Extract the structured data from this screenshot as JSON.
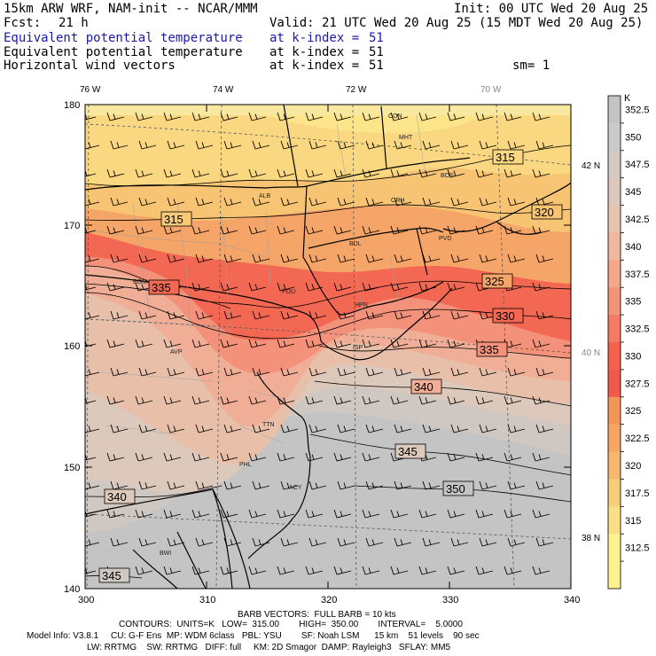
{
  "header": {
    "model_line": "15km ARW WRF, NAM-init -- NCAR/MMM",
    "init": "Init: 00 UTC Wed 20 Aug 25",
    "fcst_label": "Fcst:",
    "fcst_value": "21 h",
    "valid": "Valid: 21 UTC Wed 20 Aug 25 (15 MDT Wed 20 Aug 25)",
    "fields": [
      {
        "name": "Equivalent potential temperature",
        "level": "at k-index =",
        "value": "51"
      },
      {
        "name": "Equivalent potential temperature",
        "level": "at k-index =",
        "value": "51"
      },
      {
        "name": "Horizontal wind vectors",
        "level": "at k-index =",
        "value": "51"
      }
    ],
    "smoothing": "sm= 1"
  },
  "map": {
    "x_ticks": [
      300,
      310,
      320,
      330,
      340
    ],
    "y_ticks": [
      140,
      150,
      160,
      170,
      180
    ],
    "lon_labels": [
      "76 W",
      "74 W",
      "72 W",
      "70 W"
    ],
    "lat_labels": [
      "42 N",
      "40 N",
      "38 N"
    ],
    "cities": [
      "CON",
      "MHT",
      "BOS",
      "ALB",
      "ORH",
      "BDL",
      "PVD",
      "BGM",
      "POU",
      "HPN",
      "AVP",
      "ISP",
      "TTN",
      "PHL",
      "ACY",
      "BWI"
    ],
    "contour_labels": [
      "315",
      "315",
      "320",
      "325",
      "330",
      "335",
      "335",
      "340",
      "340",
      "345",
      "345",
      "350"
    ]
  },
  "colorbar": {
    "unit": "K",
    "levels": [
      "352.5",
      "350",
      "347.5",
      "345",
      "342.5",
      "340",
      "337.5",
      "335",
      "332.5",
      "330",
      "327.5",
      "325",
      "322.5",
      "320",
      "317.5",
      "315",
      "312.5"
    ],
    "colors": [
      "#c4c4c4",
      "#cacaca",
      "#d3cac3",
      "#dcc9bc",
      "#e7c4ad",
      "#f0b89e",
      "#f5a78c",
      "#f39377",
      "#f47b64",
      "#f4624f",
      "#f05a4b",
      "#f4955a",
      "#f5a664",
      "#f6b86e",
      "#f8cd79",
      "#fadf84",
      "#fdf190"
    ]
  },
  "footer": {
    "line1": "BARB VECTORS:  FULL BARB = 10 kts",
    "line2": "CONTOURS:  UNITS=K   LOW=  315.00        HIGH=  350.00        INTERVAL=    5.0000",
    "line3": "Model Info: V3.8.1     CU: G-F Ens  MP: WDM 6class   PBL: YSU        SF: Noah LSM      15 km    51 levels    90 sec",
    "line4": "LW: RRTMG    SW: RRTMG   DIFF: full     KM: 2D Smagor  DAMP: Rayleigh3   SFLAY: MM5"
  }
}
